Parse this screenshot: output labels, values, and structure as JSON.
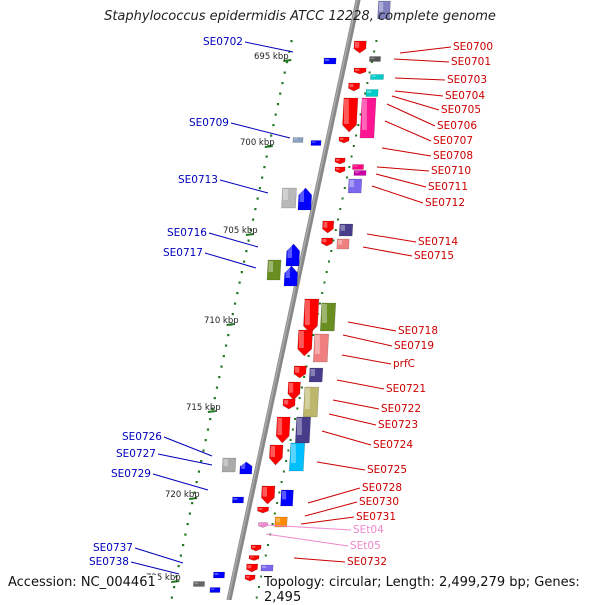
{
  "map": {
    "title": "Staphylococcus epidermidis ATCC 12228, complete genome",
    "accession": "Accession: NC_004461",
    "topology": "Topology: circular; Length: 2,499,279 bp; Genes: 2,495",
    "colors": {
      "backbone": "#808080",
      "label_left": "#0000bb",
      "label_right": "#cc0000",
      "label_rna": "#ee88cc",
      "tick": "#227722"
    },
    "scale_labels": [
      "695 kbp",
      "700 kbp",
      "705 kbp",
      "710 kbp",
      "715 kbp",
      "720 kbp",
      "725 kbp"
    ],
    "left_labels": [
      "SE0702",
      "SE0709",
      "SE0713",
      "SE0716",
      "SE0717",
      "SE0726",
      "SE0727",
      "SE0729",
      "SE0737",
      "SE0738"
    ],
    "right_labels": [
      "SE0700",
      "SE0701",
      "SE0703",
      "SE0704",
      "SE0705",
      "SE0706",
      "SE0707",
      "SE0708",
      "SE0710",
      "SE0711",
      "SE0712",
      "SE0714",
      "SE0715",
      "SE0718",
      "SE0719",
      "prfC",
      "SE0721",
      "SE0722",
      "SE0723",
      "SE0724",
      "SE0725",
      "SE0728",
      "SE0730",
      "SE0731",
      "SEt04",
      "SEt05",
      "SE0732"
    ]
  }
}
